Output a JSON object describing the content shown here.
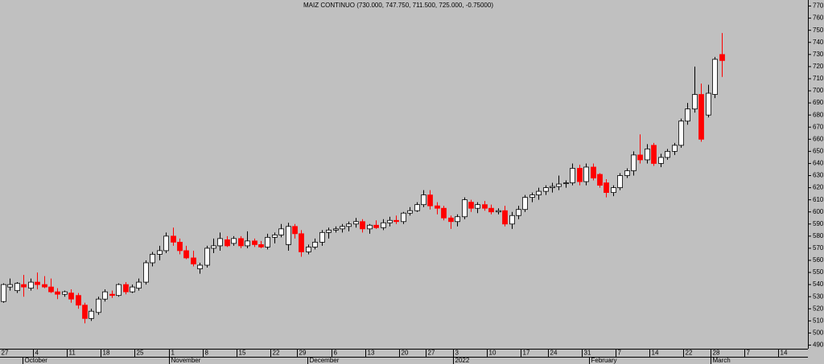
{
  "chart_data": {
    "type": "candlestick",
    "title": "MAIZ CONTINUO (730.000, 747.750, 711.500, 725.000, -0.75000)",
    "up_color": "#ffffff",
    "down_color": "#ff0000",
    "open": [
      526,
      538,
      535,
      540,
      537,
      542,
      540,
      538,
      534,
      532,
      533,
      531,
      523,
      512,
      517,
      528,
      532,
      531,
      540,
      534,
      537,
      542,
      558,
      565,
      568,
      580,
      575,
      568,
      562,
      553,
      556,
      570,
      572,
      577,
      574,
      578,
      572,
      576,
      573,
      571,
      579,
      581,
      573,
      588,
      582,
      567,
      571,
      575,
      583,
      585,
      586,
      588,
      590,
      592,
      586,
      589,
      587,
      591,
      593,
      592,
      599,
      601,
      606,
      614,
      605,
      603,
      595,
      592,
      596,
      608,
      603,
      606,
      603,
      600,
      601,
      590,
      597,
      602,
      612,
      614,
      617,
      620,
      621,
      624,
      624,
      636,
      625,
      637,
      631,
      624,
      616,
      620,
      630,
      634,
      647,
      643,
      655,
      640,
      645,
      650,
      655,
      675,
      685,
      697,
      680,
      697,
      730
    ],
    "high": [
      541,
      545,
      542,
      548,
      545,
      550,
      547,
      545,
      537,
      535,
      536,
      533,
      525,
      520,
      530,
      536,
      535,
      541,
      542,
      540,
      545,
      560,
      567,
      572,
      583,
      587,
      578,
      572,
      568,
      558,
      572,
      578,
      583,
      580,
      580,
      580,
      584,
      578,
      576,
      582,
      583,
      590,
      591,
      590,
      585,
      573,
      578,
      585,
      587,
      588,
      590,
      592,
      595,
      594,
      590,
      593,
      594,
      596,
      597,
      600,
      604,
      608,
      618,
      618,
      608,
      605,
      597,
      598,
      612,
      610,
      608,
      609,
      606,
      603,
      605,
      600,
      605,
      614,
      616,
      620,
      622,
      624,
      630,
      626,
      640,
      639,
      640,
      640,
      632,
      627,
      622,
      632,
      636,
      650,
      664,
      656,
      657,
      648,
      652,
      657,
      677,
      690,
      720,
      706,
      705,
      728,
      747.75
    ],
    "low": [
      525,
      535,
      533,
      530,
      535,
      536,
      537,
      533,
      528,
      530,
      525,
      520,
      508,
      510,
      515,
      526,
      529,
      530,
      532,
      533,
      535,
      540,
      555,
      560,
      566,
      572,
      565,
      561,
      555,
      549,
      554,
      566,
      568,
      571,
      572,
      570,
      570,
      571,
      570,
      569,
      574,
      579,
      568,
      578,
      563,
      565,
      569,
      572,
      578,
      583,
      583,
      584,
      587,
      583,
      582,
      586,
      585,
      588,
      590,
      590,
      597,
      600,
      604,
      602,
      598,
      593,
      586,
      588,
      594,
      600,
      599,
      601,
      598,
      598,
      588,
      586,
      594,
      600,
      608,
      610,
      614,
      616,
      618,
      620,
      622,
      622,
      622,
      626,
      620,
      612,
      613,
      618,
      628,
      630,
      640,
      640,
      638,
      637,
      643,
      647,
      653,
      672,
      682,
      658,
      678,
      694,
      711.5
    ],
    "close": [
      540,
      540,
      541,
      538,
      542,
      540,
      538,
      534,
      532,
      534,
      528,
      523,
      512,
      518,
      528,
      534,
      531,
      540,
      534,
      538,
      542,
      558,
      565,
      568,
      580,
      575,
      568,
      562,
      557,
      556,
      570,
      572,
      578,
      572,
      578,
      572,
      576,
      573,
      571,
      579,
      581,
      586,
      588,
      582,
      567,
      571,
      575,
      583,
      585,
      586,
      588,
      590,
      592,
      586,
      589,
      587,
      591,
      593,
      592,
      599,
      601,
      606,
      614,
      605,
      603,
      595,
      592,
      596,
      610,
      603,
      606,
      603,
      600,
      601,
      590,
      597,
      602,
      612,
      614,
      617,
      620,
      621,
      623,
      624,
      636,
      625,
      637,
      628,
      622,
      616,
      620,
      630,
      634,
      647,
      643,
      652,
      640,
      645,
      650,
      655,
      675,
      685,
      697,
      660,
      698,
      726,
      725
    ],
    "ylim": [
      487,
      775
    ],
    "yticks": [
      490,
      500,
      510,
      520,
      530,
      540,
      550,
      560,
      570,
      580,
      590,
      600,
      610,
      620,
      630,
      640,
      650,
      660,
      670,
      680,
      690,
      700,
      710,
      720,
      730,
      740,
      750,
      760,
      770
    ],
    "xticks": [
      {
        "value": 0,
        "label": "27"
      },
      {
        "value": 5,
        "label": "4"
      },
      {
        "value": 10,
        "label": "11"
      },
      {
        "value": 15,
        "label": "18"
      },
      {
        "value": 20,
        "label": "25"
      },
      {
        "value": 25,
        "label": "1"
      },
      {
        "value": 30,
        "label": "8"
      },
      {
        "value": 35,
        "label": "15"
      },
      {
        "value": 40,
        "label": "22"
      },
      {
        "value": 44,
        "label": "29"
      },
      {
        "value": 49,
        "label": "6"
      },
      {
        "value": 54,
        "label": "13"
      },
      {
        "value": 59,
        "label": "20"
      },
      {
        "value": 63,
        "label": "27"
      },
      {
        "value": 67,
        "label": "3"
      },
      {
        "value": 72,
        "label": "10"
      },
      {
        "value": 77,
        "label": "17"
      },
      {
        "value": 81,
        "label": "24"
      },
      {
        "value": 86,
        "label": "31"
      },
      {
        "value": 91,
        "label": "7"
      },
      {
        "value": 96,
        "label": "14"
      },
      {
        "value": 101,
        "label": "22"
      },
      {
        "value": 105,
        "label": "28"
      },
      {
        "value": 110,
        "label": "7"
      },
      {
        "value": 115,
        "label": "14"
      }
    ],
    "month_labels": [
      {
        "value": 3.5,
        "label": "October"
      },
      {
        "value": 25,
        "label": "November"
      },
      {
        "value": 45.5,
        "label": "December"
      },
      {
        "value": 67,
        "label": "2022"
      },
      {
        "value": 87,
        "label": "February"
      },
      {
        "value": 105,
        "label": "March"
      }
    ]
  }
}
